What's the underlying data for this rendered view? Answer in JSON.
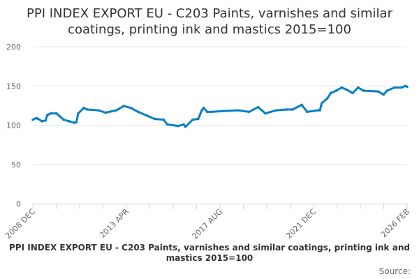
{
  "chart_data": {
    "type": "line",
    "title": "PPI INDEX EXPORT EU - C203 Paints, varnishes and similar coatings, printing ink and mastics 2015=100",
    "xlabel": "",
    "ylabel": "",
    "ylim": [
      0,
      200
    ],
    "yticks": [
      "0",
      "50",
      "100",
      "150",
      "200"
    ],
    "xlim": [
      "2008-12",
      "2026-02"
    ],
    "xtick_labels": [
      "2008 DEC",
      "2013 APR",
      "2017 AUG",
      "2021 DEC",
      "2026 FEB"
    ],
    "grid": true,
    "legend_position": "bottom",
    "series": [
      {
        "name": "PPI INDEX EXPORT EU - C203 Paints, varnishes and similar coatings, printing ink and mastics 2015=100",
        "color": "#0a7fc4",
        "x": [
          "2008-12",
          "2009-02",
          "2009-03",
          "2009-05",
          "2009-07",
          "2009-08",
          "2009-10",
          "2010-01",
          "2010-03",
          "2010-05",
          "2010-08",
          "2010-11",
          "2010-12",
          "2011-01",
          "2011-04",
          "2011-06",
          "2011-12",
          "2012-04",
          "2012-10",
          "2013-02",
          "2013-06",
          "2013-10",
          "2014-03",
          "2014-07",
          "2014-12",
          "2015-02",
          "2015-08",
          "2015-11",
          "2015-12",
          "2016-04",
          "2016-07",
          "2016-09",
          "2016-10",
          "2016-12",
          "2017-02",
          "2017-09",
          "2018-05",
          "2018-11",
          "2019-04",
          "2019-08",
          "2020-02",
          "2020-08",
          "2020-11",
          "2021-04",
          "2021-07",
          "2022-01",
          "2022-02",
          "2022-03",
          "2022-06",
          "2022-08",
          "2022-11",
          "2023-02",
          "2023-05",
          "2023-08",
          "2023-11",
          "2024-02",
          "2024-10",
          "2025-01",
          "2025-03",
          "2025-07",
          "2025-11",
          "2026-01",
          "2026-02"
        ],
        "values": [
          107,
          109,
          108,
          105,
          106,
          113,
          115,
          115,
          111,
          107,
          105,
          103,
          104,
          115,
          122,
          120,
          119,
          116,
          119,
          124.5,
          122,
          117,
          112,
          108,
          107,
          101,
          99,
          101,
          98,
          107,
          108,
          119,
          122,
          117,
          117,
          118,
          119,
          117,
          123,
          115,
          119,
          120,
          120,
          126,
          117,
          119,
          119,
          128,
          134,
          141,
          144,
          148,
          145,
          141,
          148,
          144,
          143,
          139,
          144,
          148,
          148,
          150,
          149
        ]
      }
    ]
  },
  "source_label": "Source:"
}
